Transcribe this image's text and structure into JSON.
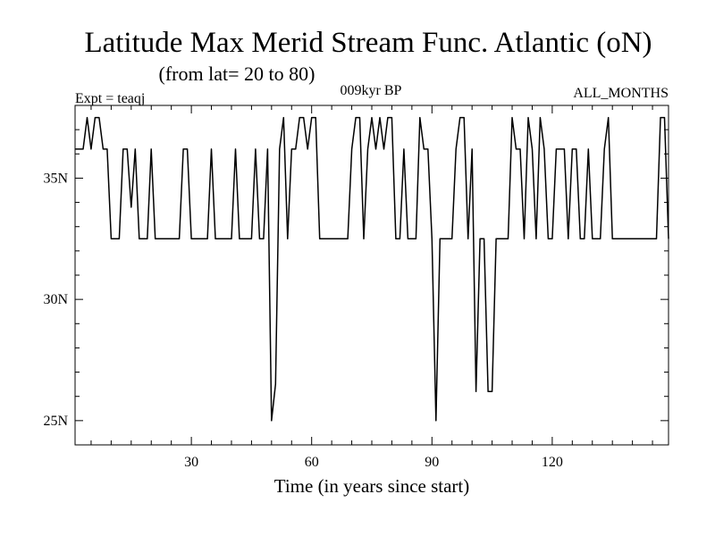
{
  "chart_data": {
    "type": "line",
    "title": "Latitude Max Merid Stream Func. Atlantic (oN)",
    "subtitle": "(from lat= 20 to 80)",
    "center_label": "009kyr BP",
    "left_label": "Expt = teaqj",
    "right_label": "ALL_MONTHS",
    "xlabel": "Time (in years since start)",
    "ylabel": "",
    "xlim": [
      1,
      149
    ],
    "ylim": [
      24,
      38
    ],
    "x_ticks": [
      30,
      60,
      90,
      120
    ],
    "x_tick_labels": [
      "30",
      "60",
      "90",
      "120"
    ],
    "y_ticks": [
      25,
      30,
      35
    ],
    "y_tick_labels": [
      "25N",
      "30N",
      "35N"
    ],
    "grid": false,
    "series": [
      {
        "values": [
          [
            1,
            36.2
          ],
          [
            3,
            36.2
          ],
          [
            4,
            37.5
          ],
          [
            5,
            36.2
          ],
          [
            6,
            37.5
          ],
          [
            7,
            37.5
          ],
          [
            8,
            36.2
          ],
          [
            9,
            36.2
          ],
          [
            10,
            32.5
          ],
          [
            12,
            32.5
          ],
          [
            13,
            36.2
          ],
          [
            14,
            36.2
          ],
          [
            15,
            33.8
          ],
          [
            16,
            36.2
          ],
          [
            17,
            32.5
          ],
          [
            19,
            32.5
          ],
          [
            20,
            36.2
          ],
          [
            21,
            32.5
          ],
          [
            27,
            32.5
          ],
          [
            28,
            36.2
          ],
          [
            29,
            36.2
          ],
          [
            30,
            32.5
          ],
          [
            34,
            32.5
          ],
          [
            35,
            36.2
          ],
          [
            36,
            32.5
          ],
          [
            40,
            32.5
          ],
          [
            41,
            36.2
          ],
          [
            42,
            32.5
          ],
          [
            45,
            32.5
          ],
          [
            46,
            36.2
          ],
          [
            47,
            32.5
          ],
          [
            48,
            32.5
          ],
          [
            49,
            36.2
          ],
          [
            50,
            25.0
          ],
          [
            51,
            26.5
          ],
          [
            52,
            36.2
          ],
          [
            53,
            37.5
          ],
          [
            54,
            32.5
          ],
          [
            55,
            36.2
          ],
          [
            56,
            36.2
          ],
          [
            57,
            37.5
          ],
          [
            58,
            37.5
          ],
          [
            59,
            36.2
          ],
          [
            60,
            37.5
          ],
          [
            61,
            37.5
          ],
          [
            62,
            32.5
          ],
          [
            69,
            32.5
          ],
          [
            70,
            36.2
          ],
          [
            71,
            37.5
          ],
          [
            72,
            37.5
          ],
          [
            73,
            32.5
          ],
          [
            74,
            36.2
          ],
          [
            75,
            37.5
          ],
          [
            76,
            36.2
          ],
          [
            77,
            37.5
          ],
          [
            78,
            36.2
          ],
          [
            79,
            37.5
          ],
          [
            80,
            37.5
          ],
          [
            81,
            32.5
          ],
          [
            82,
            32.5
          ],
          [
            83,
            36.2
          ],
          [
            84,
            32.5
          ],
          [
            86,
            32.5
          ],
          [
            87,
            37.5
          ],
          [
            88,
            36.2
          ],
          [
            89,
            36.2
          ],
          [
            90,
            32.5
          ],
          [
            91,
            25.0
          ],
          [
            92,
            32.5
          ],
          [
            95,
            32.5
          ],
          [
            96,
            36.2
          ],
          [
            97,
            37.5
          ],
          [
            98,
            37.5
          ],
          [
            99,
            32.5
          ],
          [
            100,
            36.2
          ],
          [
            101,
            26.2
          ],
          [
            102,
            32.5
          ],
          [
            103,
            32.5
          ],
          [
            104,
            26.2
          ],
          [
            105,
            26.2
          ],
          [
            106,
            32.5
          ],
          [
            107,
            32.5
          ],
          [
            109,
            32.5
          ],
          [
            110,
            37.5
          ],
          [
            111,
            36.2
          ],
          [
            112,
            36.2
          ],
          [
            113,
            32.5
          ],
          [
            114,
            37.5
          ],
          [
            115,
            36.2
          ],
          [
            116,
            32.5
          ],
          [
            117,
            37.5
          ],
          [
            118,
            36.2
          ],
          [
            119,
            32.5
          ],
          [
            120,
            32.5
          ],
          [
            121,
            36.2
          ],
          [
            123,
            36.2
          ],
          [
            124,
            32.5
          ],
          [
            125,
            36.2
          ],
          [
            126,
            36.2
          ],
          [
            127,
            32.5
          ],
          [
            128,
            32.5
          ],
          [
            129,
            36.2
          ],
          [
            130,
            32.5
          ],
          [
            132,
            32.5
          ],
          [
            133,
            36.2
          ],
          [
            134,
            37.5
          ],
          [
            135,
            32.5
          ],
          [
            146,
            32.5
          ],
          [
            147,
            37.5
          ],
          [
            148,
            37.5
          ],
          [
            149,
            32.5
          ]
        ]
      }
    ]
  }
}
